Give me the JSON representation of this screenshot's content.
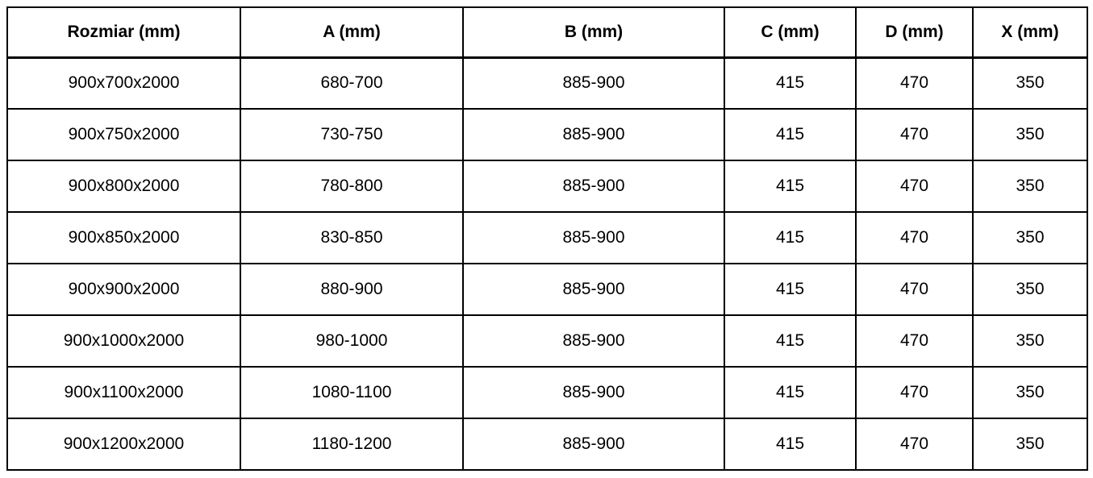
{
  "colors": {
    "background": "#ffffff",
    "border": "#000000",
    "text": "#000000"
  },
  "chart_data": {
    "type": "table",
    "title": "",
    "columns": [
      "Rozmiar (mm)",
      "A (mm)",
      "B (mm)",
      "C (mm)",
      "D (mm)",
      "X (mm)"
    ],
    "rows": [
      [
        "900x700x2000",
        "680-700",
        "885-900",
        "415",
        "470",
        "350"
      ],
      [
        "900x750x2000",
        "730-750",
        "885-900",
        "415",
        "470",
        "350"
      ],
      [
        "900x800x2000",
        "780-800",
        "885-900",
        "415",
        "470",
        "350"
      ],
      [
        "900x850x2000",
        "830-850",
        "885-900",
        "415",
        "470",
        "350"
      ],
      [
        "900x900x2000",
        "880-900",
        "885-900",
        "415",
        "470",
        "350"
      ],
      [
        "900x1000x2000",
        "980-1000",
        "885-900",
        "415",
        "470",
        "350"
      ],
      [
        "900x1100x2000",
        "1080-1100",
        "885-900",
        "415",
        "470",
        "350"
      ],
      [
        "900x1200x2000",
        "1180-1200",
        "885-900",
        "415",
        "470",
        "350"
      ]
    ]
  }
}
